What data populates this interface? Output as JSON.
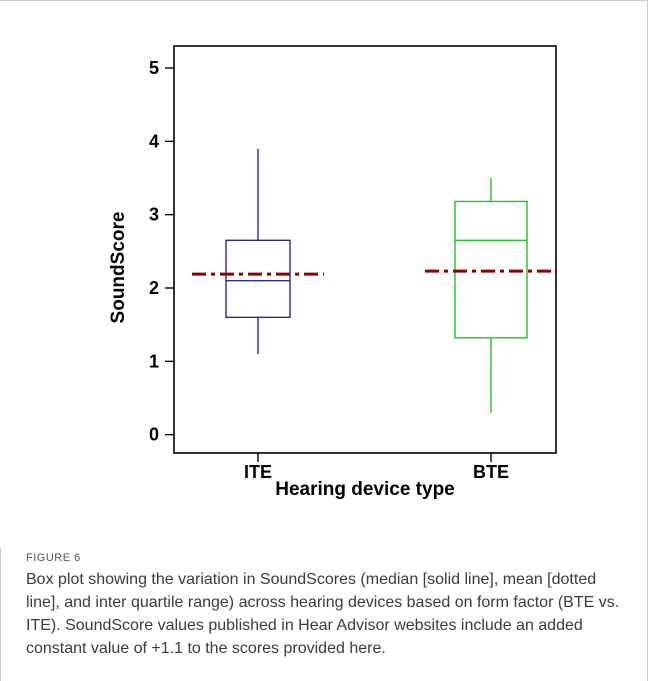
{
  "chart_data": {
    "type": "box",
    "xlabel": "Hearing device type",
    "ylabel": "SoundScore",
    "ylim": [
      -0.25,
      5.3
    ],
    "yticks": [
      0,
      1,
      2,
      3,
      4,
      5
    ],
    "categories": [
      "ITE",
      "BTE"
    ],
    "boxes": [
      {
        "label": "ITE",
        "whisker_low": 1.1,
        "q1": 1.6,
        "median": 2.1,
        "q3": 2.65,
        "whisker_high": 3.9,
        "mean": 2.19,
        "color": "#2b2b8c"
      },
      {
        "label": "BTE",
        "whisker_low": 0.3,
        "q1": 1.32,
        "median": 2.65,
        "q3": 3.18,
        "whisker_high": 3.5,
        "mean": 2.23,
        "color": "#1fc21f"
      }
    ],
    "mean_line_color": "#8b0000",
    "grid": false,
    "legend": "none"
  },
  "caption": {
    "label": "FIGURE 6",
    "text": "Box plot showing the variation in SoundScores (median [solid line], mean [dotted line], and inter quartile range) across hearing devices based on form factor (BTE vs. ITE). SoundScore values published in Hear Advisor websites include an added constant value of +1.1 to the scores provided here."
  }
}
